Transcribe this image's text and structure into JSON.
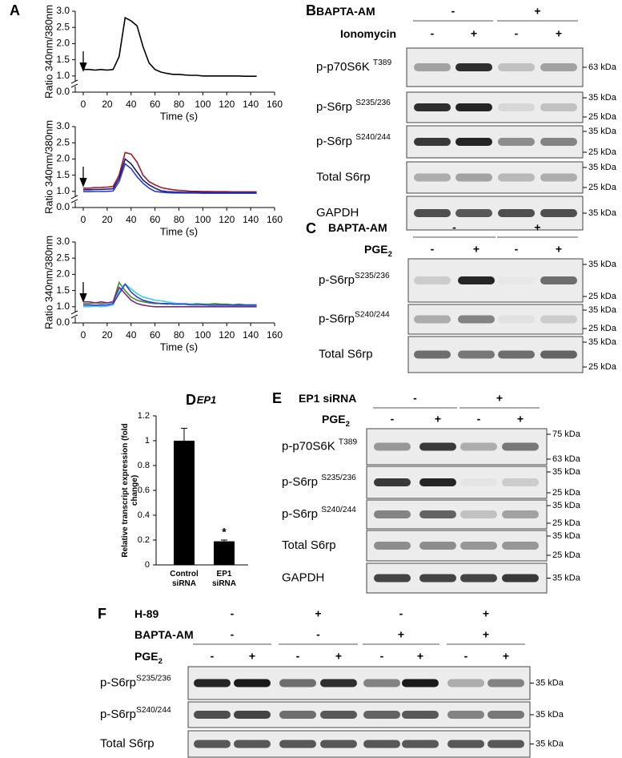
{
  "panel_labels": [
    "A",
    "B",
    "C",
    "D",
    "E",
    "F"
  ],
  "chart_data": [
    {
      "type": "line",
      "x_label": "Time (s)",
      "y_label": "Ratio 340nm/380nm",
      "x": [
        0,
        5,
        10,
        15,
        20,
        25,
        30,
        35,
        40,
        45,
        50,
        55,
        60,
        65,
        70,
        75,
        80,
        85,
        90,
        95,
        100,
        105,
        110,
        115,
        120,
        125,
        130,
        135,
        140,
        145
      ],
      "series": [
        {
          "color": "#000000",
          "values": [
            1.2,
            1.2,
            1.18,
            1.2,
            1.18,
            1.2,
            1.6,
            2.8,
            2.7,
            2.55,
            1.9,
            1.4,
            1.2,
            1.12,
            1.08,
            1.05,
            1.05,
            1.03,
            1.02,
            1.02,
            1.0,
            1.0,
            1.0,
            1.0,
            1.0,
            1.0,
            1.0,
            0.98,
            0.98,
            0.98
          ]
        }
      ],
      "xlim": [
        0,
        160
      ],
      "xticks": [
        0,
        20,
        40,
        60,
        80,
        100,
        120,
        140,
        160
      ],
      "ylim": [
        0,
        3
      ],
      "y_axis_break": true,
      "yticks": [
        {
          "value": 0,
          "label": "0.0"
        },
        {
          "value": 1,
          "label": "1.0"
        },
        {
          "value": 1.5,
          "label": "1.5"
        },
        {
          "value": 2,
          "label": "2.0"
        },
        {
          "value": 2.5,
          "label": "2.5"
        },
        {
          "value": 3,
          "label": "3.0"
        }
      ]
    },
    {
      "type": "line",
      "x_label": "Time (s)",
      "y_label": "Ratio 340nm/380nm",
      "x": [
        0,
        5,
        10,
        15,
        20,
        25,
        30,
        35,
        40,
        45,
        50,
        55,
        60,
        65,
        70,
        75,
        80,
        85,
        90,
        95,
        100,
        105,
        110,
        115,
        120,
        125,
        130,
        135,
        140,
        145
      ],
      "series": [
        {
          "color": "#9b1b2a",
          "values": [
            1.1,
            1.1,
            1.12,
            1.12,
            1.13,
            1.15,
            1.5,
            2.2,
            2.15,
            1.9,
            1.5,
            1.3,
            1.2,
            1.12,
            1.08,
            1.05,
            1.03,
            1.02,
            1.0,
            1.0,
            0.99,
            0.99,
            0.98,
            0.98,
            0.98,
            0.97,
            0.97,
            0.97,
            0.97,
            0.97
          ]
        },
        {
          "color": "#1a1a6e",
          "values": [
            1.05,
            1.05,
            1.06,
            1.06,
            1.07,
            1.08,
            1.4,
            2.0,
            1.85,
            1.6,
            1.35,
            1.2,
            1.1,
            1.02,
            0.98,
            0.96,
            0.95,
            0.94,
            0.94,
            0.93,
            0.93,
            0.93,
            0.92,
            0.92,
            0.92,
            0.92,
            0.92,
            0.92,
            0.92,
            0.92
          ]
        },
        {
          "color": "#2b3bd6",
          "values": [
            0.98,
            0.98,
            0.99,
            0.99,
            1.0,
            1.01,
            1.3,
            1.85,
            1.7,
            1.45,
            1.25,
            1.1,
            1.0,
            0.95,
            0.92,
            0.9,
            0.9,
            0.89,
            0.89,
            0.89,
            0.88,
            0.88,
            0.88,
            0.88,
            0.88,
            0.88,
            0.88,
            0.88,
            0.88,
            0.88
          ]
        }
      ],
      "xlim": [
        0,
        160
      ],
      "xticks": [
        0,
        20,
        40,
        60,
        80,
        100,
        120,
        140,
        160
      ],
      "ylim": [
        0,
        3
      ],
      "y_axis_break": true,
      "yticks": [
        {
          "value": 0,
          "label": "0.0"
        },
        {
          "value": 1,
          "label": "1.0"
        },
        {
          "value": 1.5,
          "label": "1.5"
        },
        {
          "value": 2,
          "label": "2.0"
        },
        {
          "value": 2.5,
          "label": "2.5"
        },
        {
          "value": 3,
          "label": "3.0"
        }
      ]
    },
    {
      "type": "line",
      "x_label": "Time (s)",
      "y_label": "Ratio 340nm/380nm",
      "x": [
        0,
        5,
        10,
        15,
        20,
        25,
        30,
        35,
        40,
        45,
        50,
        55,
        60,
        65,
        70,
        75,
        80,
        85,
        90,
        95,
        100,
        105,
        110,
        115,
        120,
        125,
        130,
        135,
        140,
        145
      ],
      "series": [
        {
          "color": "#4a8a3c",
          "values": [
            1.1,
            1.1,
            1.12,
            1.1,
            1.12,
            1.15,
            1.75,
            1.5,
            1.3,
            1.2,
            1.15,
            1.12,
            1.1,
            1.1,
            1.08,
            1.1,
            1.08,
            1.1,
            1.08,
            1.1,
            1.08,
            1.08,
            1.1,
            1.08,
            1.08,
            1.06,
            1.08,
            1.06,
            1.06,
            1.06
          ]
        },
        {
          "color": "#40d0e0",
          "values": [
            1.0,
            1.0,
            1.02,
            1.0,
            1.02,
            1.05,
            1.5,
            1.7,
            1.55,
            1.4,
            1.3,
            1.25,
            1.2,
            1.18,
            1.15,
            1.12,
            1.1,
            1.1,
            1.08,
            1.08,
            1.06,
            1.06,
            1.05,
            1.05,
            1.05,
            1.04,
            1.04,
            1.04,
            1.04,
            1.04
          ]
        },
        {
          "color": "#7a2a78",
          "values": [
            1.15,
            1.15,
            1.12,
            1.15,
            1.12,
            1.15,
            1.6,
            1.4,
            1.2,
            1.1,
            1.05,
            1.02,
            1.0,
            1.0,
            1.0,
            1.0,
            1.0,
            1.0,
            1.0,
            1.0,
            1.0,
            1.0,
            1.0,
            1.0,
            1.0,
            1.0,
            1.0,
            1.0,
            1.0,
            1.0
          ]
        },
        {
          "color": "#3040d0",
          "values": [
            1.05,
            1.05,
            1.05,
            1.05,
            1.06,
            1.1,
            1.4,
            1.7,
            1.45,
            1.3,
            1.2,
            1.15,
            1.12,
            1.1,
            1.1,
            1.08,
            1.08,
            1.08,
            1.06,
            1.06,
            1.06,
            1.05,
            1.05,
            1.05,
            1.05,
            1.05,
            1.05,
            1.05,
            1.05,
            1.05
          ]
        }
      ],
      "xlim": [
        0,
        160
      ],
      "xticks": [
        0,
        20,
        40,
        60,
        80,
        100,
        120,
        140,
        160
      ],
      "ylim": [
        0,
        3
      ],
      "y_axis_break": true,
      "yticks": [
        {
          "value": 0,
          "label": "0.0"
        },
        {
          "value": 1,
          "label": "1.0"
        },
        {
          "value": 1.5,
          "label": "1.5"
        },
        {
          "value": 2,
          "label": "2.0"
        },
        {
          "value": 2.5,
          "label": "2.5"
        },
        {
          "value": 3,
          "label": "3.0"
        }
      ]
    },
    {
      "type": "bar",
      "title": "EP1",
      "y_label": "Relative transcript expression (fold change)",
      "categories": [
        "Control siRNA",
        "EP1 siRNA"
      ],
      "values": [
        1,
        0.19
      ],
      "errors": [
        0.1,
        0.01
      ],
      "color": "#000000",
      "annotations": [
        {
          "text": "*",
          "x": "EP1 siRNA"
        }
      ],
      "ylim": [
        0,
        1.2
      ],
      "yticks": [
        0,
        0.2,
        0.4,
        0.6,
        0.8,
        1,
        1.2
      ]
    }
  ],
  "blots": {
    "B": {
      "treatments": [
        {
          "name": "BAPTA-AM",
          "signs": [
            "-",
            "+"
          ]
        },
        {
          "name": "Ionomycin",
          "signs": [
            "-",
            "+",
            "-",
            "+"
          ]
        }
      ],
      "rows": [
        {
          "name": "p-p70S6K ",
          "sup": "T389",
          "markers": [
            "63 kDa"
          ]
        },
        {
          "name": "p-S6rp ",
          "sup": "S235/236",
          "markers": [
            "35 kDa",
            "25 kDa"
          ]
        },
        {
          "name": "p-S6rp ",
          "sup": "S240/244",
          "markers": [
            "35 kDa",
            "25 kDa"
          ]
        },
        {
          "name": "Total S6rp",
          "markers": [
            "35 kDa",
            "25 kDa"
          ]
        },
        {
          "name": "GAPDH",
          "markers": [
            "35 kDa"
          ]
        }
      ]
    },
    "C": {
      "treatments": [
        {
          "name": "BAPTA-AM",
          "signs": [
            "-",
            "+"
          ]
        },
        {
          "name": "PGE",
          "sub": "2",
          "signs": [
            "-",
            "+",
            "-",
            "+"
          ]
        }
      ],
      "rows": [
        {
          "name": "p-S6rp",
          "sup": "S235/236",
          "markers": [
            "35 kDa",
            "25 kDa"
          ]
        },
        {
          "name": "p-S6rp",
          "sup": "S240/244",
          "markers": [
            "35 kDa",
            "25 kDa"
          ]
        },
        {
          "name": "Total S6rp",
          "markers": [
            "35 kDa",
            "25 kDa"
          ]
        }
      ]
    },
    "E": {
      "treatments": [
        {
          "name": "EP1 siRNA",
          "signs": [
            "-",
            "+"
          ]
        },
        {
          "name": "PGE",
          "sub": "2",
          "signs": [
            "-",
            "+",
            "-",
            "+"
          ]
        }
      ],
      "rows": [
        {
          "name": "p-p70S6K ",
          "sup": "T389",
          "markers": [
            "75 kDa",
            "63 kDa"
          ]
        },
        {
          "name": "p-S6rp ",
          "sup": "S235/236",
          "markers": [
            "35 kDa",
            "25 kDa"
          ]
        },
        {
          "name": "p-S6rp ",
          "sup": "S240/244",
          "markers": [
            "35 kDa",
            "25 kDa"
          ]
        },
        {
          "name": "Total S6rp",
          "markers": [
            "35 kDa",
            "25 kDa"
          ]
        },
        {
          "name": "GAPDH",
          "markers": [
            "35 kDa"
          ]
        }
      ]
    },
    "F": {
      "treatments": [
        {
          "name": "H-89",
          "signs": [
            "-",
            "+",
            "-",
            "+"
          ]
        },
        {
          "name": "BAPTA-AM",
          "signs": [
            "-",
            "-",
            "+",
            "+"
          ]
        },
        {
          "name": "PGE",
          "sub": "2",
          "signs": [
            "-",
            "+",
            "-",
            "+",
            "-",
            "+",
            "-",
            "+"
          ]
        }
      ],
      "rows": [
        {
          "name": "p-S6rp",
          "sup": "S235/236",
          "markers": [
            "35 kDa"
          ]
        },
        {
          "name": "p-S6rp",
          "sup": "S240/244",
          "markers": [
            "35 kDa"
          ]
        },
        {
          "name": "Total S6rp",
          "markers": [
            "35 kDa"
          ]
        }
      ]
    }
  }
}
